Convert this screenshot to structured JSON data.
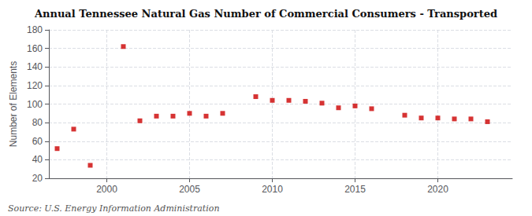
{
  "chart_data": {
    "type": "scatter",
    "title": "Annual Tennessee Natural Gas Number of Commercial Consumers - Transported",
    "ylabel": "Number of Elements",
    "annotations": [
      "Source: U.S. Energy Information Administration"
    ],
    "x": [
      1997,
      1998,
      1999,
      2001,
      2002,
      2003,
      2004,
      2005,
      2006,
      2007,
      2009,
      2010,
      2011,
      2012,
      2013,
      2014,
      2015,
      2016,
      2018,
      2019,
      2020,
      2021,
      2022,
      2023
    ],
    "values": [
      52,
      73,
      34,
      162,
      82,
      87,
      87,
      90,
      87,
      90,
      108,
      104,
      104,
      103,
      101,
      96,
      98,
      95,
      88,
      85,
      85,
      84,
      84,
      81
    ],
    "color": "#cc0000",
    "marker": "square",
    "xlim": [
      1996.5,
      2024.5
    ],
    "xticks": [
      2000,
      2005,
      2010,
      2015,
      2020
    ],
    "ylim": [
      20,
      180
    ],
    "yticks": [
      20,
      40,
      60,
      80,
      100,
      120,
      140,
      160,
      180
    ],
    "grid": true
  }
}
